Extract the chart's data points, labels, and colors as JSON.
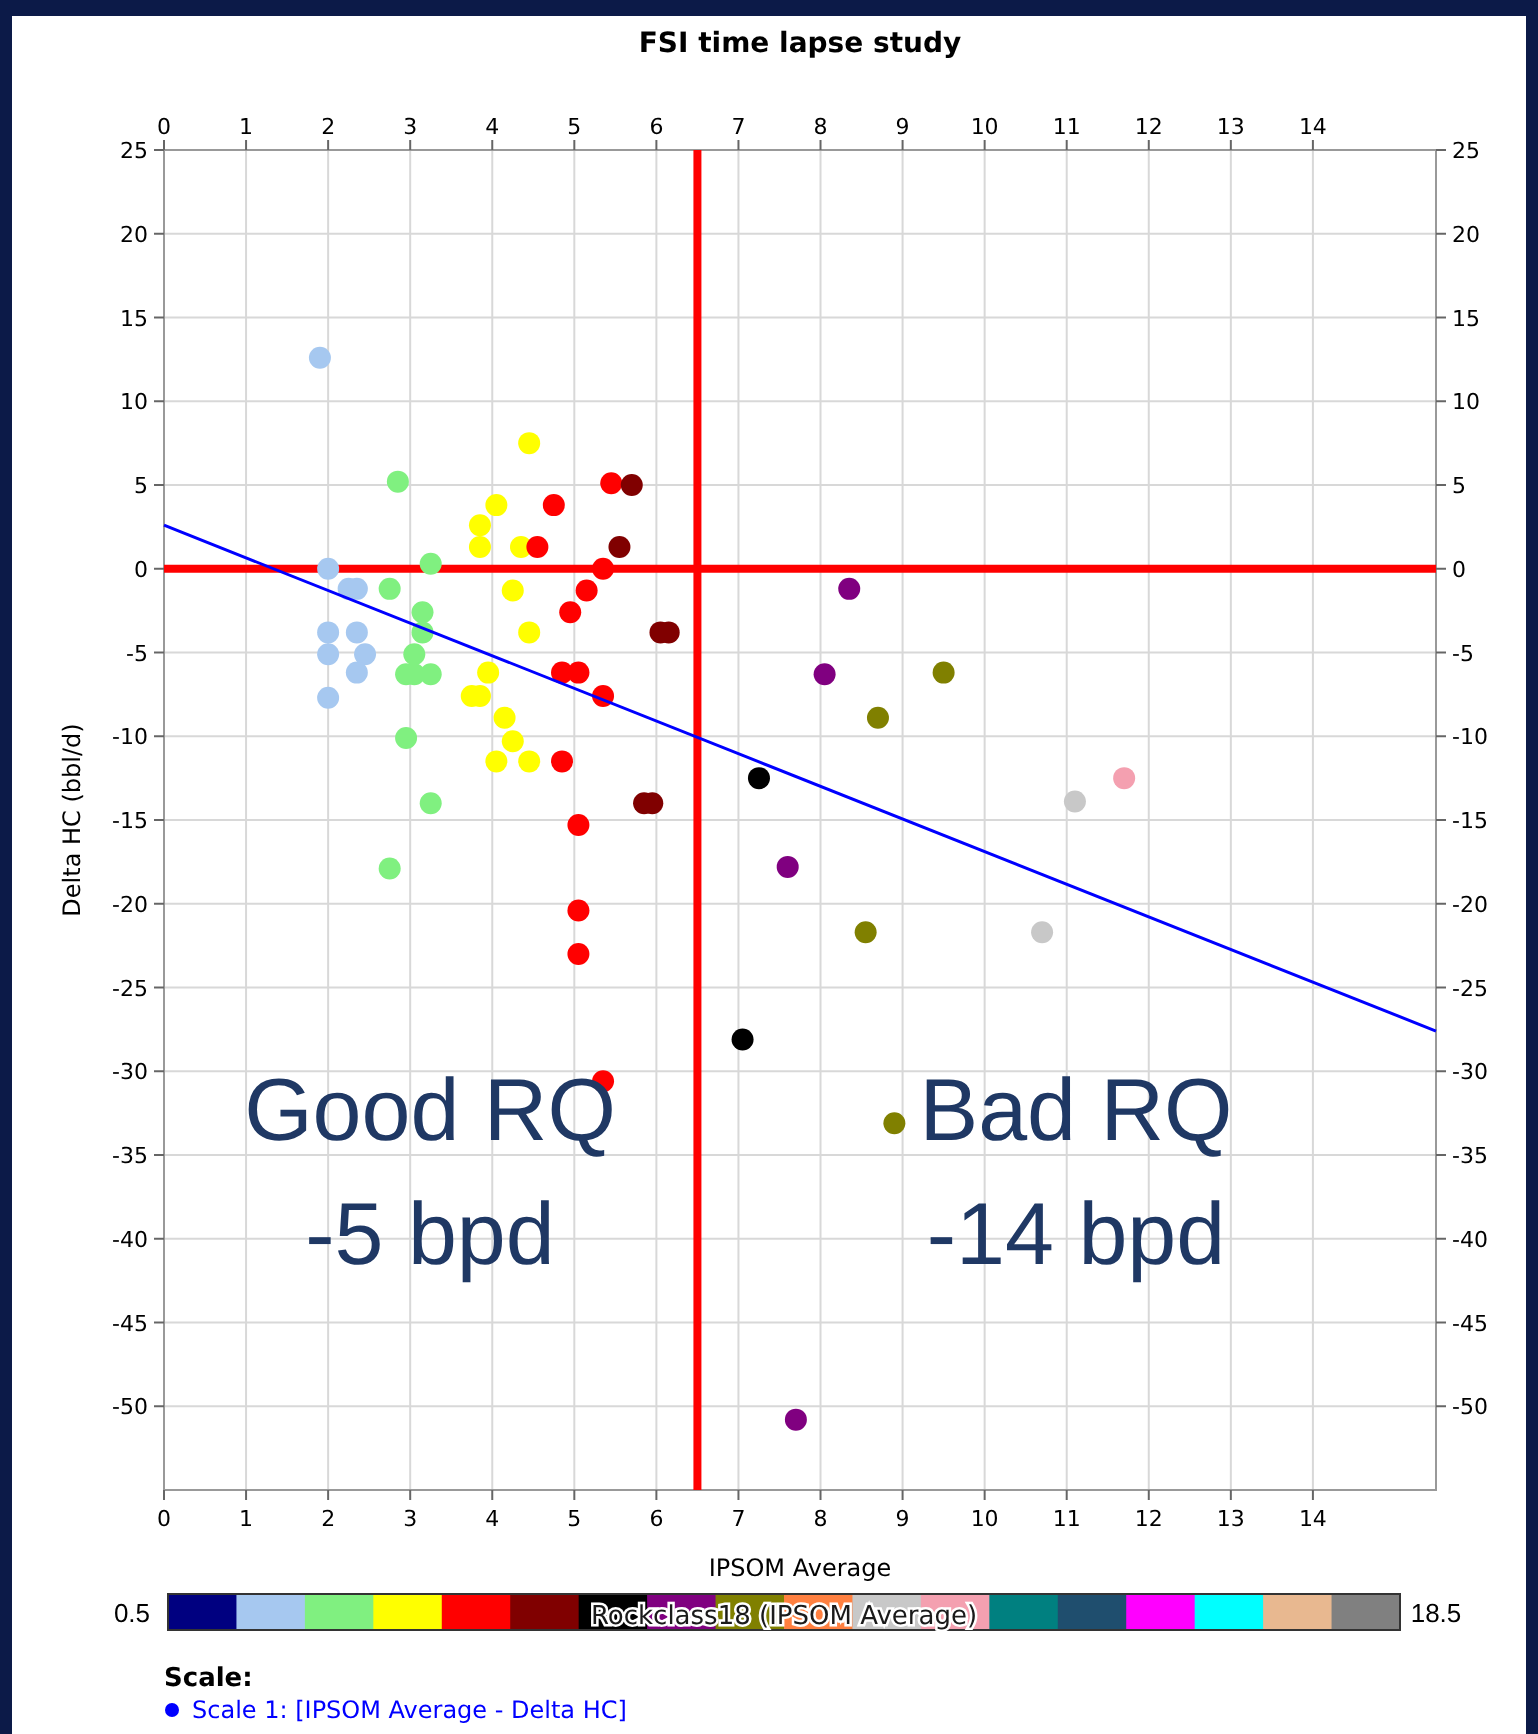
{
  "chart_data": {
    "type": "scatter",
    "title": "FSI time lapse study",
    "xlabel": "IPSOM Average",
    "ylabel": "Delta HC (bbl/d)",
    "clabel": "Rockclass18 (IPSOM Average)",
    "legend_title": "Scale:",
    "legend": "bottom",
    "grid": true,
    "xlim": [
      0,
      15.5
    ],
    "xticks": [
      0,
      1,
      2,
      3,
      4,
      5,
      6,
      7,
      8,
      9,
      10,
      11,
      12,
      13,
      14
    ],
    "x2lim": [
      0,
      15.5
    ],
    "x2ticks": [
      0,
      1,
      2,
      3,
      4,
      5,
      6,
      7,
      8,
      9,
      10,
      11,
      12,
      13,
      14
    ],
    "ylim": [
      -55,
      25
    ],
    "yticks": [
      25,
      20,
      15,
      10,
      5,
      0,
      -5,
      -10,
      -15,
      -20,
      -25,
      -30,
      -35,
      -40,
      -45,
      -50
    ],
    "y2lim": [
      -55,
      25
    ],
    "y2ticks": [
      25,
      20,
      15,
      10,
      5,
      0,
      -5,
      -10,
      -15,
      -20,
      -25,
      -30,
      -35,
      -40,
      -45,
      -50
    ],
    "colors": [
      "#000080",
      "#a6c8f0",
      "#80f080",
      "#ffff00",
      "#ff0000",
      "#800000",
      "#000000",
      "#800080",
      "#808000",
      "#ff8040",
      "#c8c8c8",
      "#f4a0b0",
      "#008080",
      "#1f4e6e",
      "#ff00ff",
      "#00ffff",
      "#e8b890",
      "#808080"
    ],
    "ref_lines": [
      {
        "axis": "x",
        "value": 6.5,
        "color": "#ff0000"
      },
      {
        "axis": "y",
        "value": 0,
        "color": "#ff0000"
      }
    ],
    "annotations": [
      "Good RQ\n-5 bpd",
      "Bad RQ\n-14 bpd",
      "0.5",
      "18.5"
    ],
    "series": [
      {
        "type": "scatter",
        "marker": "circle",
        "x": [
          1.9,
          2.0,
          2.25,
          2.35,
          2.0,
          2.35,
          2.0,
          2.45,
          2.35,
          2.0,
          2.85,
          2.75,
          3.25,
          3.15,
          3.15,
          3.05,
          2.95,
          3.05,
          3.25,
          2.95,
          3.25,
          2.75,
          4.45,
          4.05,
          3.85,
          3.85,
          4.35,
          4.25,
          4.45,
          3.95,
          3.75,
          3.85,
          4.15,
          4.25,
          4.05,
          4.45,
          5.45,
          4.75,
          4.55,
          5.35,
          5.15,
          4.95,
          4.85,
          5.05,
          5.35,
          4.85,
          5.05,
          5.05,
          5.05,
          5.35,
          5.7,
          5.55,
          6.05,
          6.15,
          5.85,
          5.95,
          7.25,
          7.05,
          8.35,
          8.05,
          7.6,
          7.7,
          9.5,
          8.7,
          8.55,
          8.9,
          11.1,
          10.7,
          11.7
        ],
        "values": [
          12.6,
          0,
          -1.2,
          -1.2,
          -3.8,
          -3.8,
          -5.1,
          -5.1,
          -6.2,
          -7.7,
          5.2,
          -1.2,
          0.3,
          -2.6,
          -3.8,
          -5.1,
          -6.3,
          -6.3,
          -6.3,
          -10.1,
          -14.0,
          -17.9,
          7.5,
          3.8,
          2.6,
          1.3,
          1.3,
          -1.3,
          -3.8,
          -6.2,
          -7.6,
          -7.6,
          -8.9,
          -10.3,
          -11.5,
          -11.5,
          5.1,
          3.8,
          1.3,
          0,
          -1.3,
          -2.6,
          -6.2,
          -6.2,
          -7.6,
          -11.5,
          -15.3,
          -20.4,
          -23.0,
          -30.6,
          5.0,
          1.3,
          -3.8,
          -3.8,
          -14.0,
          -14.0,
          -12.5,
          -28.1,
          -1.2,
          -6.3,
          -17.8,
          -50.8,
          -6.2,
          -8.9,
          -21.7,
          -33.1,
          -13.9,
          -21.7,
          -12.5
        ],
        "colors": [
          "#a6c8f0",
          "#a6c8f0",
          "#a6c8f0",
          "#a6c8f0",
          "#a6c8f0",
          "#a6c8f0",
          "#a6c8f0",
          "#a6c8f0",
          "#a6c8f0",
          "#a6c8f0",
          "#80f080",
          "#80f080",
          "#80f080",
          "#80f080",
          "#80f080",
          "#80f080",
          "#80f080",
          "#80f080",
          "#80f080",
          "#80f080",
          "#80f080",
          "#80f080",
          "#ffff00",
          "#ffff00",
          "#ffff00",
          "#ffff00",
          "#ffff00",
          "#ffff00",
          "#ffff00",
          "#ffff00",
          "#ffff00",
          "#ffff00",
          "#ffff00",
          "#ffff00",
          "#ffff00",
          "#ffff00",
          "#ff0000",
          "#ff0000",
          "#ff0000",
          "#ff0000",
          "#ff0000",
          "#ff0000",
          "#ff0000",
          "#ff0000",
          "#ff0000",
          "#ff0000",
          "#ff0000",
          "#ff0000",
          "#ff0000",
          "#ff0000",
          "#800000",
          "#800000",
          "#800000",
          "#800000",
          "#800000",
          "#800000",
          "#000000",
          "#000000",
          "#800080",
          "#800080",
          "#800080",
          "#800080",
          "#808000",
          "#808000",
          "#808000",
          "#808000",
          "#c8c8c8",
          "#c8c8c8",
          "#f4a0b0"
        ]
      },
      {
        "type": "line",
        "name": "Scale 1:  [IPSOM Average - Delta HC]",
        "color": "#0000ff",
        "line_style": "solid",
        "marker": "none",
        "x": [
          0,
          15.5
        ],
        "values": [
          2.6,
          -27.6
        ]
      }
    ]
  }
}
